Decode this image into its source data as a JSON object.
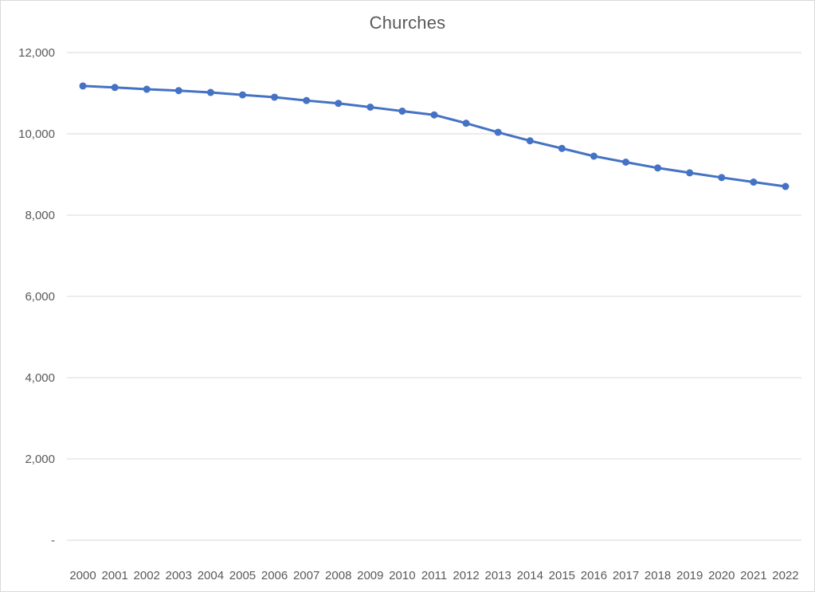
{
  "chart": {
    "title": "Churches"
  },
  "colors": {
    "line": "#4472C4",
    "marker": "#4472C4",
    "gridline": "#D9D9D9",
    "text": "#595959",
    "border": "#D9D9D9",
    "background": "#FFFFFF"
  },
  "chart_data": {
    "type": "line",
    "title": "Churches",
    "categories": [
      "2000",
      "2001",
      "2002",
      "2003",
      "2004",
      "2005",
      "2006",
      "2007",
      "2008",
      "2009",
      "2010",
      "2011",
      "2012",
      "2013",
      "2014",
      "2015",
      "2016",
      "2017",
      "2018",
      "2019",
      "2020",
      "2021",
      "2022"
    ],
    "series": [
      {
        "name": "Churches",
        "values": [
          11178,
          11141,
          11097,
          11064,
          11019,
          10959,
          10903,
          10820,
          10751,
          10657,
          10560,
          10466,
          10262,
          10038,
          9829,
          9642,
          9451,
          9304,
          9161,
          9041,
          8925,
          8813,
          8705
        ],
        "color": "#4472C4",
        "marker": "circle"
      }
    ],
    "xlabel": "",
    "ylabel": "",
    "ylim": [
      0,
      12000
    ],
    "ytick_interval": 2000,
    "ytick_labels": [
      "-",
      "2,000",
      "4,000",
      "6,000",
      "8,000",
      "10,000",
      "12,000"
    ],
    "grid": true,
    "legend_position": "none"
  }
}
